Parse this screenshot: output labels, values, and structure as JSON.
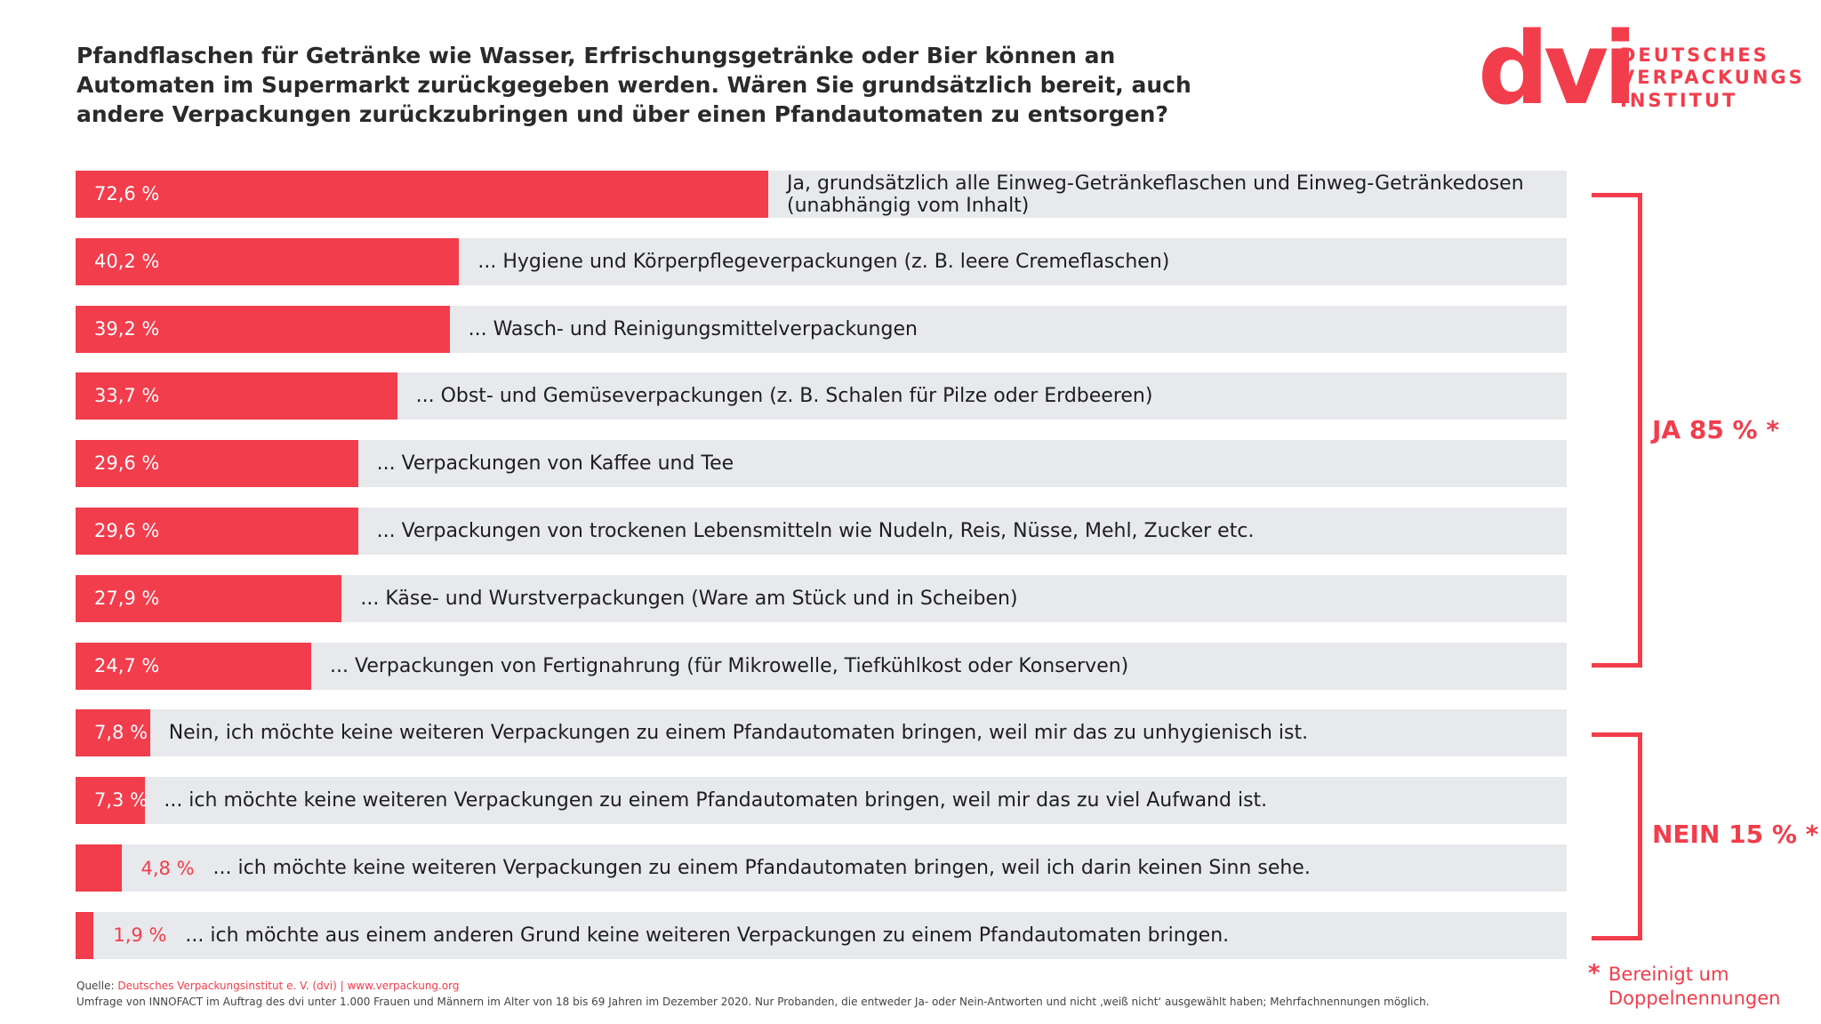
{
  "chart_data": {
    "type": "bar",
    "orientation": "horizontal",
    "title": "Pfandflaschen für Getränke wie Wasser, Erfrischungsgetränke oder Bier können an Automaten im Supermarkt zurückgegeben werden. Wären Sie grundsätzlich bereit, auch andere Verpackungen zurückzubringen und über einen Pfandautomaten zu entsorgen?",
    "categories": [
      "Ja, grundsätzlich alle Einweg-Getränkeflaschen und Einweg-Getränkedosen (unabhängig vom Inhalt)",
      "... Hygiene und Körperpflegeverpackungen (z. B. leere Cremeflaschen)",
      "... Wasch- und Reinigungsmittelverpackungen",
      "... Obst- und Gemüseverpackungen (z. B. Schalen für Pilze oder Erdbeeren)",
      "... Verpackungen von Kaffee und Tee",
      "... Verpackungen von trockenen Lebensmitteln wie Nudeln, Reis, Nüsse, Mehl, Zucker etc.",
      "... Käse- und Wurstverpackungen (Ware am Stück und in Scheiben)",
      "... Verpackungen von Fertignahrung (für Mikrowelle, Tiefkühlkost oder Konserven)",
      "Nein, ich möchte keine weiteren Verpackungen zu einem Pfandautomaten bringen, weil mir das zu unhygienisch ist.",
      "... ich möchte keine weiteren Verpackungen zu einem Pfandautomaten bringen, weil mir das zu viel Aufwand ist.",
      "... ich möchte keine weiteren Verpackungen zu einem Pfandautomaten bringen, weil ich darin keinen Sinn sehe.",
      "... ich möchte aus einem anderen Grund keine weiteren Verpackungen zu einem Pfandautomaten bringen."
    ],
    "values": [
      72.6,
      40.2,
      39.2,
      33.7,
      29.6,
      29.6,
      27.9,
      24.7,
      7.8,
      7.3,
      4.8,
      1.9
    ],
    "value_labels": [
      "72,6 %",
      "40,2 %",
      "39,2 %",
      "33,7 %",
      "29,6 %",
      "29,6 %",
      "27,9 %",
      "24,7 %",
      "7,8 %",
      "7,3 %",
      "4,8 %",
      "1,9 %"
    ],
    "color": "#f23d4c",
    "groups": [
      {
        "label": "JA 85 % *"
      },
      {
        "label": "NEIN 15 % *"
      }
    ],
    "footnote": [
      "*",
      "Bereinigt um",
      "Doppelnennungen"
    ],
    "source_prefix": "Quelle:",
    "source": "Deutsches Verpackungsinstitut e. V. (dvi) | www.verpackung.org",
    "note": "Umfrage von INNOFACT im Auftrag des dvi unter 1.000 Frauen und Männern im Alter von 18 bis 69 Jahren im Dezember 2020. Nur Probanden, die entweder Ja- oder Nein-Antworten und nicht ‚weiß nicht‘ ausgewählt haben; Mehrfachnennungen möglich."
  },
  "logo": {
    "mark": "dvi",
    "lines": [
      "DEUTSCHES",
      "VERPACKUNGS",
      "INSTITUT"
    ]
  }
}
